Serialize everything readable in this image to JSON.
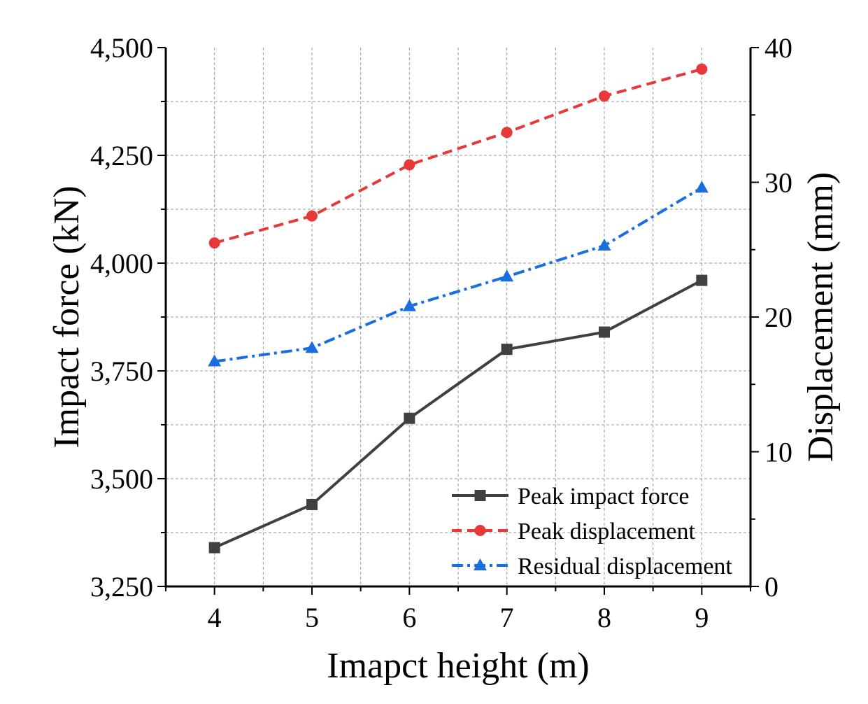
{
  "chart_data": {
    "type": "line",
    "xlabel": "Imapct height (m)",
    "ylabel_left": "Impact force (kN)",
    "ylabel_right": "Displacement (mm)",
    "x": [
      4,
      5,
      6,
      7,
      8,
      9
    ],
    "xlim": [
      3.5,
      9.5
    ],
    "x_ticks": [
      "4",
      "5",
      "6",
      "7",
      "8",
      "9"
    ],
    "ylim_left": [
      3250,
      4500
    ],
    "y_ticks_left": [
      "3,250",
      "3,500",
      "3,750",
      "4,000",
      "4,250",
      "4,500"
    ],
    "y_tick_values_left": [
      3250,
      3500,
      3750,
      4000,
      4250,
      4500
    ],
    "ylim_right": [
      0,
      40
    ],
    "y_ticks_right": [
      "0",
      "10",
      "20",
      "30",
      "40"
    ],
    "y_tick_values_right": [
      0,
      10,
      20,
      30,
      40
    ],
    "grid": true,
    "legend_position": "bottom-right",
    "series": [
      {
        "name": "Peak impact force",
        "axis": "left",
        "color": "#404040",
        "style": "solid",
        "marker": "square",
        "values": [
          3340,
          3440,
          3640,
          3800,
          3840,
          3960
        ]
      },
      {
        "name": "Peak displacement",
        "axis": "right",
        "color": "#e8393a",
        "style": "dash",
        "marker": "circle",
        "values": [
          25.5,
          27.5,
          31.3,
          33.7,
          36.4,
          38.4
        ]
      },
      {
        "name": "Residual displacement",
        "axis": "right",
        "color": "#1a6fe0",
        "style": "dashdot",
        "marker": "triangle",
        "values": [
          16.7,
          17.7,
          20.8,
          23.0,
          25.3,
          29.6
        ]
      }
    ]
  }
}
